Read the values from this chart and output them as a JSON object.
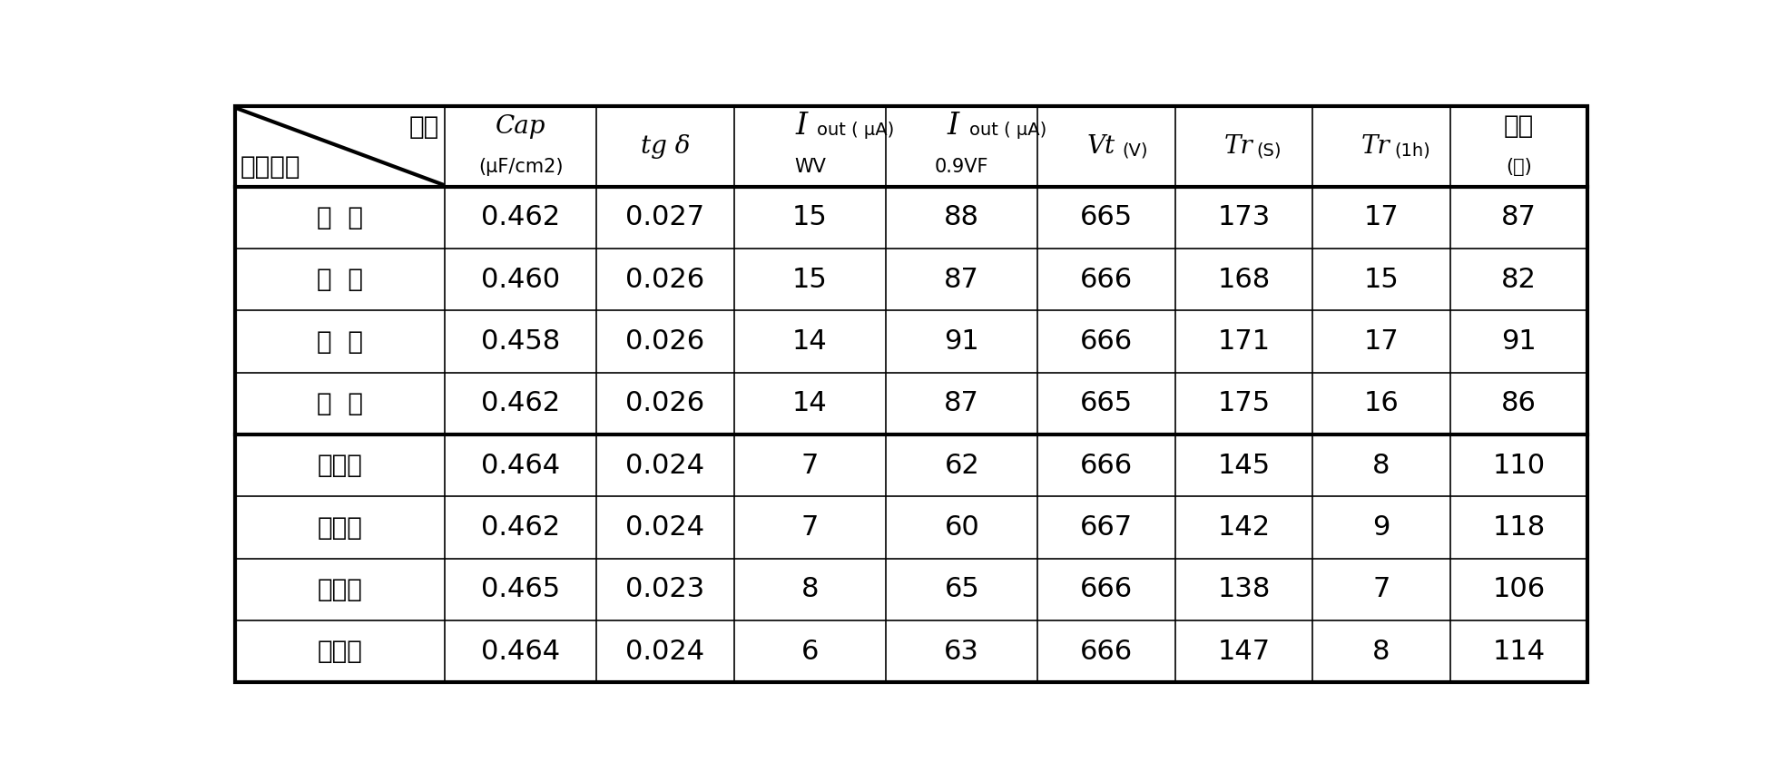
{
  "group1_rows": [
    [
      "传  统",
      "0.462",
      "0.027",
      "15",
      "88",
      "665",
      "173",
      "17",
      "87"
    ],
    [
      "的  电",
      "0.460",
      "0.026",
      "15",
      "87",
      "666",
      "168",
      "15",
      "82"
    ],
    [
      "极  板",
      "0.458",
      "0.026",
      "14",
      "91",
      "666",
      "171",
      "17",
      "91"
    ],
    [
      "结  构",
      "0.462",
      "0.026",
      "14",
      "87",
      "665",
      "175",
      "16",
      "86"
    ]
  ],
  "group2_rows": [
    [
      "本发明",
      "0.464",
      "0.024",
      "7",
      "62",
      "666",
      "145",
      "8",
      "110"
    ],
    [
      "条状组",
      "0.462",
      "0.024",
      "7",
      "60",
      "667",
      "142",
      "9",
      "118"
    ],
    [
      "合电极",
      "0.465",
      "0.023",
      "8",
      "65",
      "666",
      "138",
      "7",
      "106"
    ],
    [
      "板结构",
      "0.464",
      "0.024",
      "6",
      "63",
      "666",
      "147",
      "8",
      "114"
    ]
  ],
  "col_widths_rel": [
    1.45,
    1.05,
    0.95,
    1.05,
    1.05,
    0.95,
    0.95,
    0.95,
    0.95
  ],
  "bg_color": "#ffffff",
  "border_color": "#000000",
  "thick_lw": 3.0,
  "thin_lw": 1.2,
  "header_label1_top": [
    "项目",
    "Cap",
    "tg δ",
    "I",
    "I",
    "Vt",
    "Tr",
    "Tr",
    "折弯"
  ],
  "header_label1_sub": [
    "",
    "",
    "",
    "out ( μA)",
    "out ( μA)",
    " (V)",
    " (S)",
    " (1h)",
    ""
  ],
  "header_label2": [
    "化成方法",
    "(μF/cm2)",
    "",
    "WV",
    "0.9VF",
    "",
    "",
    "",
    "(回)"
  ]
}
